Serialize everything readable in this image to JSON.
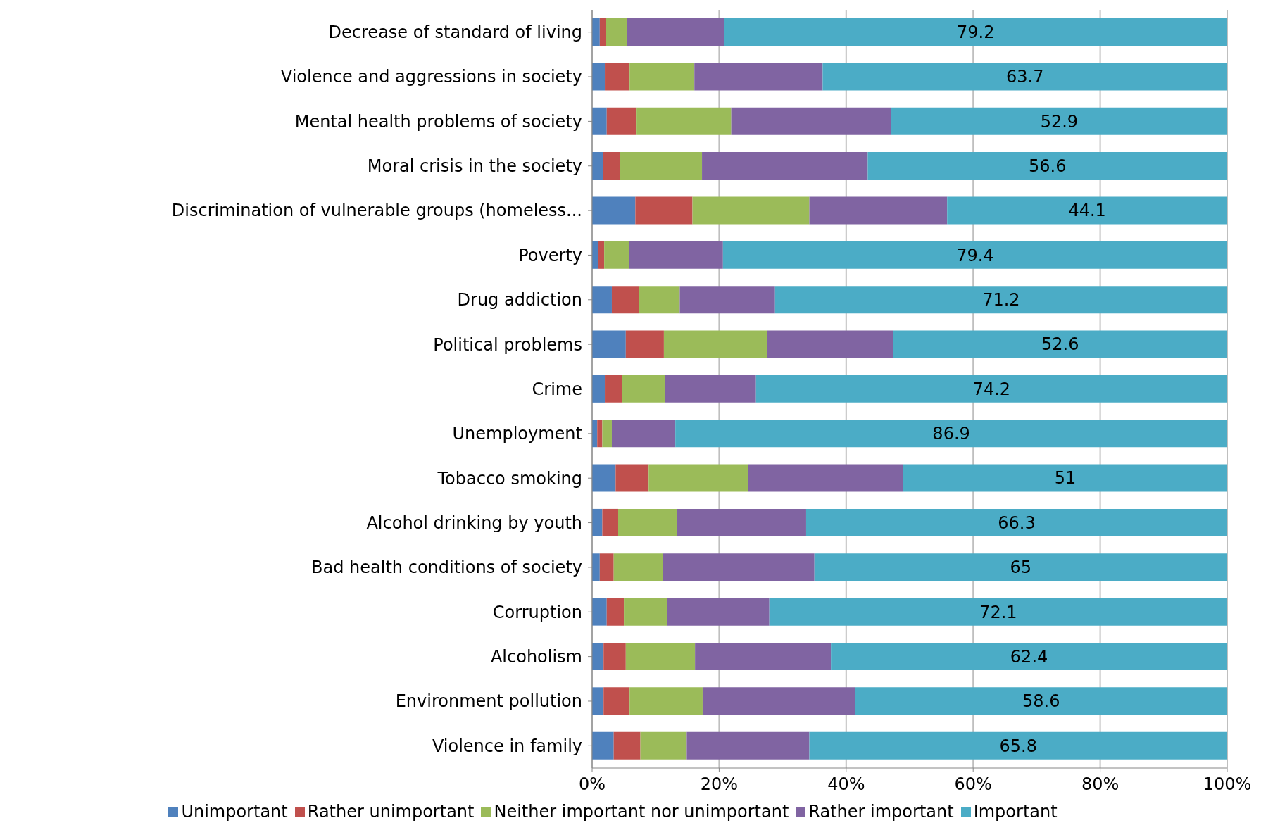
{
  "chart_data": {
    "type": "bar",
    "orientation": "horizontal",
    "stacked": true,
    "categories": [
      "Decrease of standard of living",
      "Violence and aggressions in society",
      "Mental health problems of society",
      "Moral crisis in the society",
      "Discrimination of vulnerable groups (homeless...",
      "Poverty",
      "Drug addiction",
      "Political problems",
      "Crime",
      "Unemployment",
      "Tobacco smoking",
      "Alcohol drinking by youth",
      "Bad health conditions of society",
      "Corruption",
      "Alcoholism",
      "Environment pollution",
      "Violence in family"
    ],
    "series": [
      {
        "name": "Unimportant",
        "color": "#4f81bd",
        "values": [
          1.2,
          2.0,
          2.3,
          1.7,
          6.8,
          1.0,
          3.1,
          5.3,
          2.0,
          0.8,
          3.7,
          1.6,
          1.2,
          2.3,
          1.8,
          1.8,
          3.4
        ]
      },
      {
        "name": "Rather unimportant",
        "color": "#c0504d",
        "values": [
          1.0,
          3.9,
          4.7,
          2.7,
          9.0,
          0.9,
          4.3,
          6.0,
          2.7,
          0.8,
          5.2,
          2.5,
          2.2,
          2.7,
          3.5,
          4.1,
          4.2
        ]
      },
      {
        "name": "Neither important nor unimportant",
        "color": "#9bbb59",
        "values": [
          3.3,
          10.2,
          14.9,
          12.9,
          18.4,
          3.9,
          6.4,
          16.2,
          6.8,
          1.5,
          15.7,
          9.3,
          7.7,
          6.8,
          10.9,
          11.5,
          7.3
        ]
      },
      {
        "name": "Rather important",
        "color": "#8064a2",
        "values": [
          15.3,
          20.2,
          25.2,
          26.1,
          21.7,
          14.8,
          15.0,
          19.9,
          14.3,
          10.0,
          24.4,
          20.3,
          23.9,
          16.1,
          21.4,
          24.0,
          19.3
        ]
      },
      {
        "name": "Important",
        "color": "#4bacc6",
        "values": [
          79.2,
          63.7,
          52.9,
          56.6,
          44.1,
          79.4,
          71.2,
          52.6,
          74.2,
          86.9,
          51,
          66.3,
          65,
          72.1,
          62.4,
          58.6,
          65.8
        ],
        "value_labels": [
          "79.2",
          "63.7",
          "52.9",
          "56.6",
          "44.1",
          "79.4",
          "71.2",
          "52.6",
          "74.2",
          "86.9",
          "51",
          "66.3",
          "65",
          "72.1",
          "62.4",
          "58.6",
          "65.8"
        ]
      }
    ],
    "xlim": [
      0,
      100
    ],
    "xticks": [
      {
        "value": 0,
        "label": "0%"
      },
      {
        "value": 20,
        "label": "20%"
      },
      {
        "value": 40,
        "label": "40%"
      },
      {
        "value": 60,
        "label": "60%"
      },
      {
        "value": 80,
        "label": "80%"
      },
      {
        "value": 100,
        "label": "100%"
      }
    ],
    "grid": "x",
    "legend": "bottom"
  }
}
